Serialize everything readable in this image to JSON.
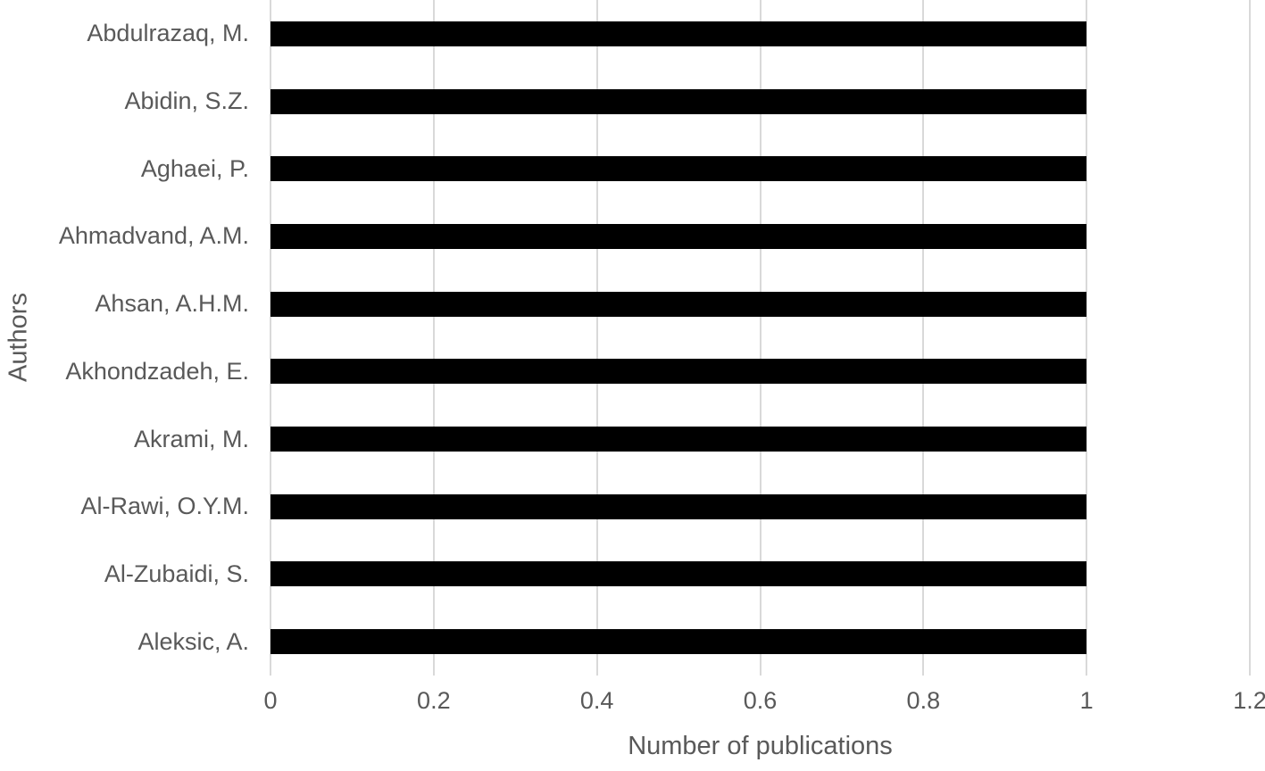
{
  "chart_data": {
    "type": "bar",
    "orientation": "horizontal",
    "title": "",
    "xlabel": "Number of publications",
    "ylabel": "Authors",
    "categories": [
      "Abdulrazaq, M.",
      "Abidin, S.Z.",
      "Aghaei, P.",
      "Ahmadvand, A.M.",
      "Ahsan, A.H.M.",
      "Akhondzadeh, E.",
      "Akrami, M.",
      "Al-Rawi, O.Y.M.",
      "Al-Zubaidi, S.",
      "Aleksic, A."
    ],
    "values": [
      1,
      1,
      1,
      1,
      1,
      1,
      1,
      1,
      1,
      1
    ],
    "xlim": [
      0,
      1.2
    ],
    "xticks": [
      0,
      0.2,
      0.4,
      0.6,
      0.8,
      1,
      1.2
    ],
    "xtick_labels": [
      "0",
      "0.2",
      "0.4",
      "0.6",
      "0.8",
      "1",
      "1.2"
    ],
    "grid": true,
    "legend": false,
    "colors": {
      "bar": "#000000",
      "gridline": "#d9d9d9",
      "text": "#595959",
      "background": "#ffffff"
    }
  }
}
